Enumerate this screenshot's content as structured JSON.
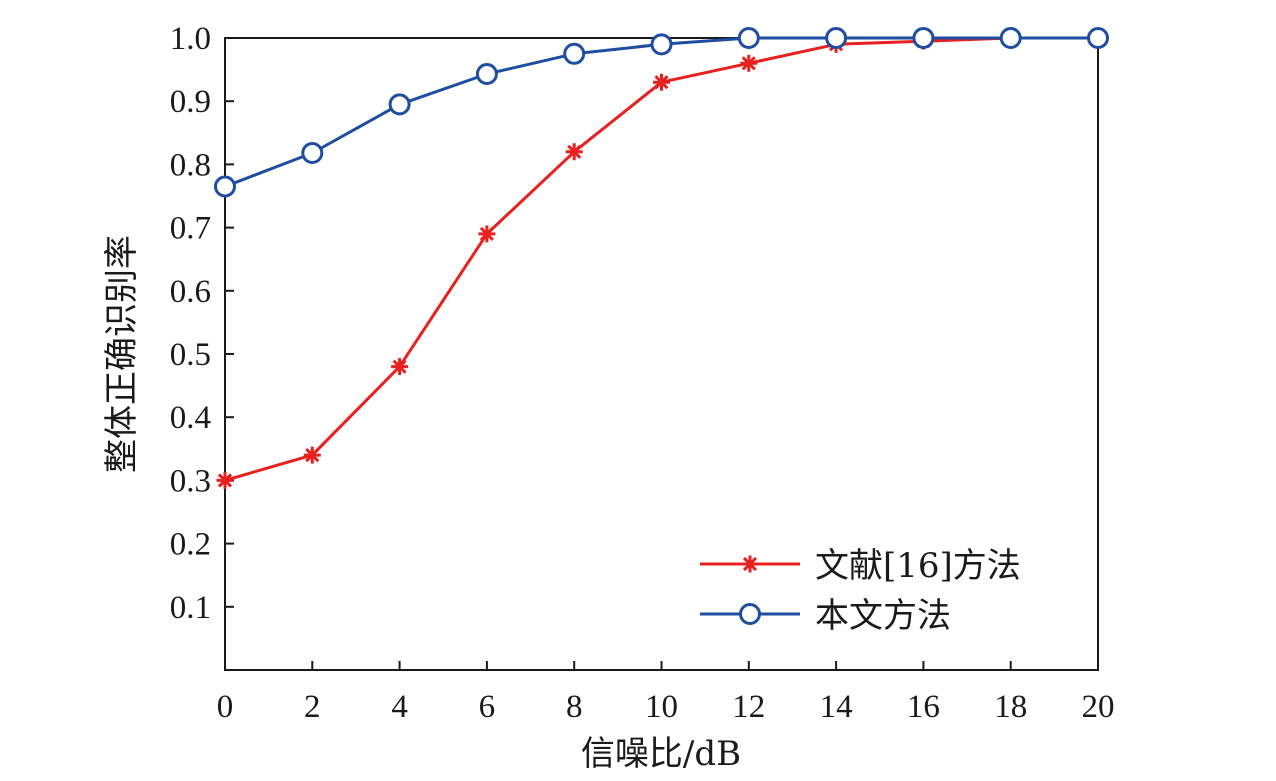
{
  "chart_data": {
    "type": "line",
    "xlabel": "信噪比/dB",
    "ylabel": "整体正确识别率",
    "xlim": [
      0,
      20
    ],
    "ylim": [
      0,
      1.0
    ],
    "x_ticks": [
      "0",
      "2",
      "4",
      "6",
      "8",
      "10",
      "12",
      "14",
      "16",
      "18",
      "20"
    ],
    "y_ticks": [
      "0.1",
      "0.2",
      "0.3",
      "0.4",
      "0.5",
      "0.6",
      "0.7",
      "0.8",
      "0.9",
      "1.0"
    ],
    "grid": false,
    "legend_position": "bottom-right",
    "series": [
      {
        "name": "文献[16]方法",
        "color": "#e8201f",
        "marker": "asterisk",
        "x": [
          0,
          2,
          4,
          6,
          8,
          10,
          12,
          14,
          16,
          18,
          20
        ],
        "y": [
          0.3,
          0.34,
          0.48,
          0.69,
          0.82,
          0.93,
          0.96,
          0.99,
          0.995,
          1.0,
          1.0
        ]
      },
      {
        "name": "本文方法",
        "color": "#1f4ea1",
        "marker": "circle",
        "x": [
          0,
          2,
          4,
          6,
          8,
          10,
          12,
          14,
          16,
          18,
          20
        ],
        "y": [
          0.765,
          0.818,
          0.895,
          0.943,
          0.975,
          0.99,
          1.0,
          1.0,
          1.0,
          1.0,
          1.0
        ]
      }
    ]
  }
}
